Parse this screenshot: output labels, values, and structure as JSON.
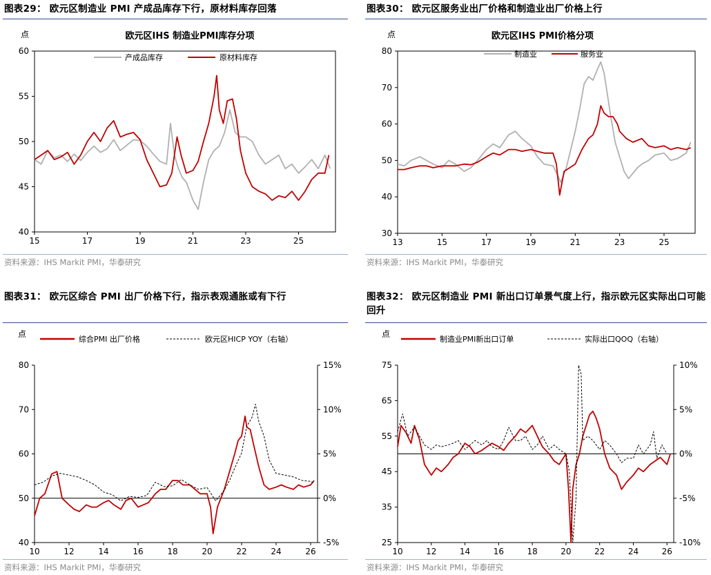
{
  "charts": [
    {
      "id": "c29",
      "header": "图表29：  欧元区制造业 PMI 产成品库存下行，原材料库存回落",
      "source": "资料来源：IHS Markit PMI，华泰研究",
      "unit": "点",
      "chart_title": "欧元区IHS 制造业PMI库存分项"
    },
    {
      "id": "c30",
      "header": "图表30：  欧元区服务业出厂价格和制造业出厂价格上行",
      "source": "资料来源：IHS Markit PMI，华泰研究",
      "unit": "点",
      "chart_title": "欧元区IHS PMI价格分项"
    },
    {
      "id": "c31",
      "header": "图表31：  欧元区综合 PMI 出厂价格下行，指示表观通胀或有下行",
      "source": "资料来源：IHS Markit PMI，华泰研究",
      "unit": "点",
      "chart_title": ""
    },
    {
      "id": "c32",
      "header": "图表32：  欧元区制造业 PMI 新出口订单景气度上行，指示欧元区实际出口可能回升",
      "source": "资料来源：IHS Markit PMI，华泰研究",
      "unit": "点",
      "chart_title": ""
    }
  ],
  "colors": {
    "red": "#c00000",
    "gray": "#b0b0b0",
    "black": "#000000",
    "rule": "#2b4e8c"
  },
  "chart_data": [
    {
      "type": "line",
      "title": "欧元区IHS 制造业PMI库存分项",
      "ylabel": "点",
      "ylim": [
        40,
        60
      ],
      "yticks": [
        40,
        45,
        50,
        55,
        60
      ],
      "xlim": [
        2015.0,
        2026.4
      ],
      "xtick_values": [
        2015,
        2017,
        2019,
        2021,
        2023,
        2025
      ],
      "xtick_labels": [
        "15",
        "17",
        "19",
        "21",
        "23",
        "25"
      ],
      "legend": "top",
      "series": [
        {
          "name": "产成品库存",
          "color": "#b0b0b0",
          "x": [
            2015.0,
            2015.25,
            2015.5,
            2015.75,
            2016.0,
            2016.25,
            2016.5,
            2016.75,
            2017.0,
            2017.25,
            2017.5,
            2017.75,
            2018.0,
            2018.25,
            2018.5,
            2018.75,
            2019.0,
            2019.25,
            2019.5,
            2019.75,
            2020.0,
            2020.15,
            2020.3,
            2020.45,
            2020.6,
            2020.75,
            2021.0,
            2021.2,
            2021.4,
            2021.6,
            2021.8,
            2022.0,
            2022.2,
            2022.4,
            2022.6,
            2022.8,
            2023.0,
            2023.25,
            2023.5,
            2023.75,
            2024.0,
            2024.25,
            2024.5,
            2024.75,
            2025.0,
            2025.25,
            2025.5,
            2025.75,
            2026.0,
            2026.2
          ],
          "y": [
            48,
            47.5,
            49,
            48.2,
            48.5,
            47.8,
            48.6,
            47.9,
            48.8,
            49.5,
            48.8,
            49.2,
            50.2,
            49.0,
            49.6,
            50.2,
            50.1,
            49.5,
            48.6,
            47.8,
            47.5,
            52.0,
            48.5,
            47.0,
            46.0,
            45.5,
            43.5,
            42.5,
            45.5,
            48.0,
            49.0,
            49.5,
            51.0,
            53.5,
            51.0,
            50.5,
            50.5,
            50.0,
            48.5,
            47.5,
            48.0,
            48.5,
            47.0,
            47.5,
            46.5,
            47.2,
            48.0,
            47.0,
            48.5,
            47.0
          ]
        },
        {
          "name": "原材料库存",
          "color": "#c00000",
          "x": [
            2015.0,
            2015.25,
            2015.5,
            2015.75,
            2016.0,
            2016.25,
            2016.5,
            2016.75,
            2017.0,
            2017.25,
            2017.5,
            2017.75,
            2018.0,
            2018.25,
            2018.5,
            2018.75,
            2019.0,
            2019.25,
            2019.5,
            2019.75,
            2020.0,
            2020.2,
            2020.4,
            2020.55,
            2020.75,
            2021.0,
            2021.2,
            2021.4,
            2021.6,
            2021.8,
            2021.9,
            2022.0,
            2022.15,
            2022.3,
            2022.5,
            2022.65,
            2022.8,
            2023.0,
            2023.25,
            2023.5,
            2023.75,
            2024.0,
            2024.25,
            2024.5,
            2024.75,
            2025.0,
            2025.25,
            2025.5,
            2025.75,
            2026.0,
            2026.15
          ],
          "y": [
            48,
            48.5,
            49,
            48.0,
            48.3,
            48.8,
            47.5,
            48.5,
            50.0,
            51.0,
            50.0,
            51.5,
            52.3,
            50.5,
            50.8,
            51.0,
            50.2,
            48.0,
            46.5,
            45.0,
            45.2,
            46.5,
            50.5,
            48.5,
            46.5,
            46.8,
            47.8,
            50.0,
            52.0,
            55.0,
            57.3,
            53.5,
            52.0,
            54.5,
            54.7,
            52.5,
            49.0,
            46.5,
            45.0,
            44.5,
            44.2,
            43.5,
            44.0,
            43.8,
            44.5,
            43.5,
            44.5,
            45.8,
            46.5,
            46.5,
            48.5
          ]
        }
      ]
    },
    {
      "type": "line",
      "title": "欧元区IHS PMI价格分项",
      "ylabel": "点",
      "ylim": [
        30,
        80
      ],
      "yticks": [
        30,
        40,
        50,
        60,
        70,
        80
      ],
      "xlim": [
        2013.0,
        2026.4
      ],
      "xtick_values": [
        2013,
        2015,
        2017,
        2019,
        2021,
        2023,
        2025
      ],
      "xtick_labels": [
        "13",
        "15",
        "17",
        "19",
        "21",
        "23",
        "25"
      ],
      "legend": "top",
      "series": [
        {
          "name": "制造业",
          "color": "#b0b0b0",
          "x": [
            2013.0,
            2013.3,
            2013.6,
            2014.0,
            2014.3,
            2014.6,
            2015.0,
            2015.3,
            2015.6,
            2016.0,
            2016.3,
            2016.6,
            2017.0,
            2017.3,
            2017.6,
            2018.0,
            2018.3,
            2018.6,
            2019.0,
            2019.3,
            2019.6,
            2020.0,
            2020.2,
            2020.35,
            2020.6,
            2021.0,
            2021.2,
            2021.4,
            2021.6,
            2021.8,
            2022.0,
            2022.15,
            2022.3,
            2022.45,
            2022.6,
            2022.8,
            2023.0,
            2023.2,
            2023.4,
            2023.6,
            2023.8,
            2024.0,
            2024.3,
            2024.6,
            2025.0,
            2025.3,
            2025.6,
            2026.0,
            2026.2
          ],
          "y": [
            49,
            48.5,
            50,
            51,
            50,
            49,
            48,
            50,
            49,
            47,
            48,
            50,
            53,
            54.5,
            53.5,
            57,
            58,
            56,
            54,
            51,
            49,
            48.5,
            46,
            44,
            48,
            58,
            64,
            71,
            73,
            72,
            75,
            77,
            74,
            68,
            62,
            55,
            51,
            47,
            45,
            46.5,
            48,
            49,
            50,
            51.5,
            52,
            50,
            50.5,
            52,
            55
          ]
        },
        {
          "name": "服务业",
          "color": "#c00000",
          "x": [
            2013.0,
            2013.3,
            2013.6,
            2014.0,
            2014.3,
            2014.6,
            2015.0,
            2015.3,
            2015.6,
            2016.0,
            2016.3,
            2016.6,
            2017.0,
            2017.3,
            2017.6,
            2018.0,
            2018.3,
            2018.6,
            2019.0,
            2019.3,
            2019.6,
            2020.0,
            2020.15,
            2020.3,
            2020.5,
            2020.75,
            2021.0,
            2021.3,
            2021.6,
            2021.8,
            2022.0,
            2022.15,
            2022.3,
            2022.5,
            2022.7,
            2022.9,
            2023.0,
            2023.3,
            2023.6,
            2024.0,
            2024.3,
            2024.6,
            2025.0,
            2025.3,
            2025.6,
            2026.0,
            2026.2
          ],
          "y": [
            47.5,
            47.5,
            48,
            48.5,
            48.5,
            48,
            48.5,
            48.5,
            48.5,
            49,
            48.8,
            49.5,
            51,
            52,
            51.5,
            53,
            53,
            52.5,
            53,
            52.5,
            52,
            52,
            49,
            40.5,
            47,
            48,
            49,
            53,
            56,
            57,
            60,
            65,
            63,
            62,
            62,
            60,
            58,
            56,
            55,
            56,
            54,
            53.5,
            54,
            53,
            53.5,
            53,
            53.5
          ]
        }
      ]
    },
    {
      "type": "line",
      "title": "",
      "ylabel": "点",
      "ylim": [
        40,
        80
      ],
      "yticks": [
        40,
        50,
        60,
        70,
        80
      ],
      "y2lim": [
        -5,
        15
      ],
      "y2ticks": [
        "-5%",
        "0%",
        "5%",
        "10%",
        "15%"
      ],
      "y2tick_values": [
        -5,
        0,
        5,
        10,
        15
      ],
      "xlim": [
        2010.0,
        2026.4
      ],
      "xtick_values": [
        2010,
        2012,
        2014,
        2016,
        2018,
        2020,
        2022,
        2024,
        2026
      ],
      "xtick_labels": [
        "10",
        "12",
        "14",
        "16",
        "18",
        "20",
        "22",
        "24",
        "26"
      ],
      "legend": "top",
      "series": [
        {
          "name": "综合PMI 出厂价格",
          "color": "#c00000",
          "axis": "left",
          "x": [
            2010.0,
            2010.3,
            2010.6,
            2011.0,
            2011.3,
            2011.6,
            2012.0,
            2012.3,
            2012.6,
            2013.0,
            2013.3,
            2013.6,
            2014.0,
            2014.3,
            2014.6,
            2015.0,
            2015.3,
            2015.6,
            2016.0,
            2016.3,
            2016.6,
            2017.0,
            2017.3,
            2017.6,
            2018.0,
            2018.3,
            2018.6,
            2019.0,
            2019.3,
            2019.6,
            2020.0,
            2020.2,
            2020.35,
            2020.6,
            2021.0,
            2021.3,
            2021.6,
            2021.8,
            2022.0,
            2022.2,
            2022.3,
            2022.5,
            2022.7,
            2023.0,
            2023.3,
            2023.6,
            2024.0,
            2024.3,
            2024.6,
            2025.0,
            2025.3,
            2025.6,
            2026.0,
            2026.2
          ],
          "y": [
            46,
            50,
            51,
            55.5,
            56,
            50,
            48.5,
            47.5,
            47,
            48.5,
            48,
            48,
            49,
            49.5,
            48.5,
            47.5,
            49.5,
            50,
            48,
            48.5,
            49,
            51,
            52,
            52,
            54,
            54,
            53,
            53,
            52,
            51,
            51,
            48,
            42,
            48,
            52,
            56,
            60,
            63,
            64,
            68.5,
            66,
            65.5,
            62,
            57,
            53,
            52,
            52.5,
            53,
            52.5,
            52,
            53,
            52.5,
            53,
            54
          ]
        },
        {
          "name": "欧元区HICP YOY（右轴）",
          "color": "#000000",
          "axis": "right",
          "dashed": true,
          "x": [
            2010.0,
            2010.5,
            2011.0,
            2011.5,
            2012.0,
            2012.5,
            2013.0,
            2013.5,
            2014.0,
            2014.5,
            2015.0,
            2015.5,
            2016.0,
            2016.5,
            2017.0,
            2017.5,
            2018.0,
            2018.5,
            2019.0,
            2019.5,
            2020.0,
            2020.5,
            2021.0,
            2021.3,
            2021.6,
            2022.0,
            2022.3,
            2022.6,
            2022.8,
            2023.0,
            2023.3,
            2023.6,
            2024.0,
            2024.5,
            2025.0,
            2025.5,
            2026.0,
            2026.2
          ],
          "y": [
            1.5,
            1.8,
            2.5,
            2.8,
            2.6,
            2.4,
            2.0,
            1.5,
            0.7,
            0.4,
            -0.3,
            0.2,
            0.1,
            0.3,
            1.8,
            1.3,
            1.4,
            2.1,
            1.5,
            1.0,
            1.2,
            -0.3,
            0.9,
            2.0,
            3.4,
            5.1,
            8.1,
            9.1,
            10.6,
            8.6,
            7.0,
            4.3,
            2.8,
            2.6,
            2.4,
            2.0,
            1.9,
            1.7
          ]
        }
      ]
    },
    {
      "type": "line",
      "title": "",
      "ylabel": "点",
      "ylim": [
        25,
        75
      ],
      "yticks": [
        25,
        35,
        45,
        55,
        65,
        75
      ],
      "y2lim": [
        -10,
        10
      ],
      "y2ticks": [
        "-10%",
        "-5%",
        "0%",
        "5%",
        "10%"
      ],
      "y2tick_values": [
        -10,
        -5,
        0,
        5,
        10
      ],
      "xlim": [
        2010.0,
        2026.4
      ],
      "xtick_values": [
        2010,
        2012,
        2014,
        2016,
        2018,
        2020,
        2022,
        2024,
        2026
      ],
      "xtick_labels": [
        "10",
        "12",
        "14",
        "16",
        "18",
        "20",
        "22",
        "24",
        "26"
      ],
      "legend": "top",
      "series": [
        {
          "name": "制造业PMI新出口订单",
          "color": "#c00000",
          "axis": "left",
          "x": [
            2010.0,
            2010.2,
            2010.5,
            2010.8,
            2011.0,
            2011.3,
            2011.6,
            2012.0,
            2012.3,
            2012.6,
            2013.0,
            2013.3,
            2013.6,
            2014.0,
            2014.3,
            2014.6,
            2015.0,
            2015.3,
            2015.6,
            2016.0,
            2016.3,
            2016.6,
            2017.0,
            2017.3,
            2017.6,
            2018.0,
            2018.3,
            2018.6,
            2019.0,
            2019.3,
            2019.6,
            2020.0,
            2020.15,
            2020.3,
            2020.4,
            2020.6,
            2020.8,
            2021.0,
            2021.2,
            2021.4,
            2021.6,
            2021.8,
            2022.0,
            2022.3,
            2022.6,
            2023.0,
            2023.3,
            2023.6,
            2024.0,
            2024.3,
            2024.6,
            2025.0,
            2025.3,
            2025.6,
            2026.0,
            2026.2
          ],
          "y": [
            52,
            58,
            56,
            53,
            58,
            54,
            47,
            44,
            46,
            45,
            47,
            49,
            50,
            53,
            52,
            50,
            51,
            52,
            53,
            52,
            51,
            53,
            55,
            57,
            56,
            58,
            55,
            52,
            50,
            48,
            47,
            50,
            40,
            25,
            40,
            47,
            50,
            55,
            58,
            61,
            62,
            60,
            57,
            50,
            46,
            44,
            40,
            42,
            44,
            46,
            45,
            47,
            48,
            49,
            47,
            50
          ]
        },
        {
          "name": "实际出口QOQ（右轴）",
          "color": "#000000",
          "axis": "right",
          "dashed": true,
          "x": [
            2010.0,
            2010.3,
            2010.6,
            2011.0,
            2011.3,
            2011.6,
            2012.0,
            2012.3,
            2012.6,
            2013.0,
            2013.3,
            2013.6,
            2014.0,
            2014.3,
            2014.6,
            2015.0,
            2015.3,
            2015.6,
            2016.0,
            2016.3,
            2016.6,
            2017.0,
            2017.3,
            2017.6,
            2018.0,
            2018.3,
            2018.6,
            2019.0,
            2019.3,
            2019.6,
            2020.0,
            2020.2,
            2020.4,
            2020.6,
            2020.75,
            2020.9,
            2021.0,
            2021.3,
            2021.6,
            2022.0,
            2022.3,
            2022.6,
            2023.0,
            2023.3,
            2023.6,
            2024.0,
            2024.3,
            2024.6,
            2025.0,
            2025.2,
            2025.4,
            2025.7,
            2026.0
          ],
          "y": [
            2.5,
            4.5,
            2.0,
            3.0,
            2.0,
            1.0,
            0.5,
            1.0,
            0.8,
            1.0,
            1.2,
            1.5,
            0.5,
            1.0,
            1.5,
            1.0,
            1.5,
            0.8,
            0.5,
            1.5,
            3.0,
            1.5,
            1.5,
            2.0,
            0.5,
            1.0,
            2.0,
            0.5,
            1.0,
            0.5,
            0.0,
            -2.0,
            -10.0,
            -5.0,
            10.0,
            9.0,
            1.5,
            2.0,
            1.5,
            0.5,
            1.5,
            1.0,
            0.0,
            -1.0,
            -0.5,
            -0.5,
            1.0,
            0.0,
            1.0,
            2.5,
            -0.5,
            1.0,
            0.0
          ]
        }
      ]
    }
  ]
}
